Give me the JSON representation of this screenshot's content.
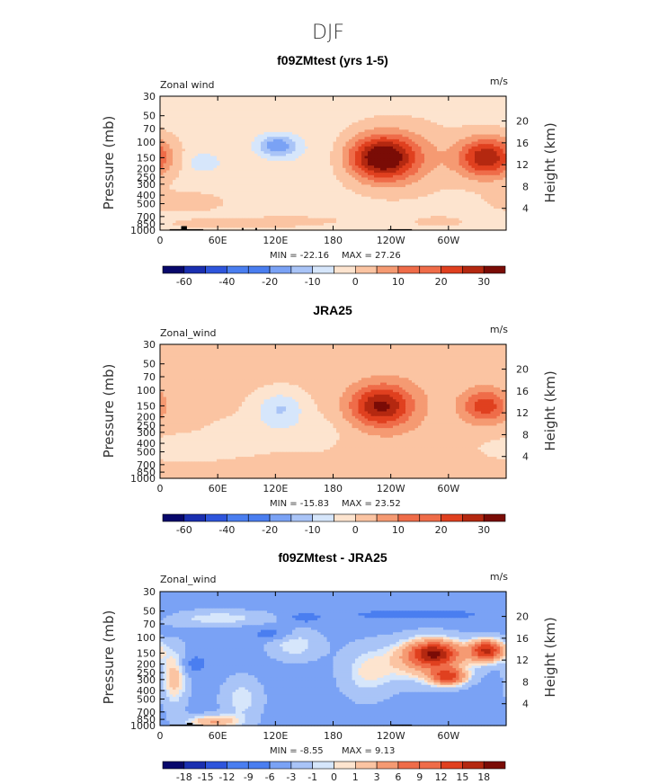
{
  "figure": {
    "suptitle": "DJF"
  },
  "colors": {
    "levels_full": [
      "#08086b",
      "#1a2fb0",
      "#2e55dc",
      "#4a7ef0",
      "#7aa2f5",
      "#a9c4f7",
      "#d6e6fb",
      "#fde4cf",
      "#fbc4a2",
      "#f59a72",
      "#ef6c49",
      "#e0401f",
      "#b42810",
      "#7a0c06"
    ],
    "levels_diff": [
      "#08086b",
      "#1a2fb0",
      "#2e55dc",
      "#4a7ef0",
      "#7aa2f5",
      "#a9c4f7",
      "#d6e6fb",
      "#fde4cf",
      "#fbc4a2",
      "#f59a72",
      "#ef6c49",
      "#e0401f",
      "#b42810",
      "#7a0c06"
    ],
    "topography": "#000000"
  },
  "chart_data": [
    {
      "type": "heatmap",
      "title": "f09ZMtest (yrs 1-5)",
      "left_label": "Zonal wind",
      "right_label": "m/s",
      "ylabel": "Pressure (mb)",
      "y2label": "Height (km)",
      "x_ticks": [
        "0",
        "60E",
        "120E",
        "180",
        "120W",
        "60W"
      ],
      "x_tick_values": [
        0,
        60,
        120,
        180,
        240,
        300
      ],
      "xlim": [
        0,
        360
      ],
      "y_ticks": [
        "30",
        "50",
        "70",
        "100",
        "150",
        "200",
        "250",
        "300",
        "400",
        "500",
        "700",
        "850",
        "1000"
      ],
      "y_tick_values": [
        30,
        50,
        70,
        100,
        150,
        200,
        250,
        300,
        400,
        500,
        700,
        850,
        1000
      ],
      "ylim": [
        1000,
        30
      ],
      "y_scale": "log",
      "y2_ticks": [
        "4",
        "8",
        "12",
        "16",
        "20"
      ],
      "y2_tick_values": [
        4,
        8,
        12,
        16,
        20
      ],
      "min_label": "MIN = -22.16",
      "max_label": "MAX = 27.26",
      "min": -22.16,
      "max": 27.26,
      "colorbar_labels": [
        "-60",
        "-40",
        "-20",
        "-10",
        "0",
        "10",
        "20",
        "30"
      ],
      "colorbar_label_pos": [
        1,
        3,
        5,
        7,
        9,
        11,
        13,
        15
      ],
      "colorbar_boxes": 16,
      "background_level": 6,
      "features": [
        {
          "lon": 25,
          "p": 480,
          "w": 70,
          "h": 0.22,
          "v": 2
        },
        {
          "lon": 75,
          "p": 850,
          "w": 95,
          "h": 0.1,
          "v": 2.5
        },
        {
          "lon": 140,
          "p": 780,
          "w": 70,
          "h": 0.08,
          "v": 2
        },
        {
          "lon": 160,
          "p": 150,
          "w": 60,
          "h": 0.55,
          "v": -4
        },
        {
          "lon": 45,
          "p": 170,
          "w": 25,
          "h": 0.18,
          "v": -9
        },
        {
          "lon": 122,
          "p": 110,
          "w": 28,
          "h": 0.2,
          "v": -19
        },
        {
          "lon": 252,
          "p": 150,
          "w": 75,
          "h": 0.62,
          "v": 6
        },
        {
          "lon": 230,
          "p": 150,
          "w": 48,
          "h": 0.4,
          "v": 26
        },
        {
          "lon": 340,
          "p": 150,
          "w": 42,
          "h": 0.38,
          "v": 24
        },
        {
          "lon": 290,
          "p": 800,
          "w": 40,
          "h": 0.1,
          "v": 2
        }
      ],
      "topography": [
        {
          "lon_start": 10,
          "lon_end": 45,
          "p_top": 975
        },
        {
          "lon_start": 22,
          "lon_end": 28,
          "p_top": 900
        },
        {
          "lon_start": 85,
          "lon_end": 87,
          "p_top": 945
        },
        {
          "lon_start": 99,
          "lon_end": 101,
          "p_top": 945
        },
        {
          "lon_start": 237,
          "lon_end": 262,
          "p_top": 975
        }
      ]
    },
    {
      "type": "heatmap",
      "title": "JRA25",
      "left_label": "Zonal_wind",
      "right_label": "m/s",
      "ylabel": "Pressure (mb)",
      "y2label": "Height (km)",
      "x_ticks": [
        "0",
        "60E",
        "120E",
        "180",
        "120W",
        "60W"
      ],
      "x_tick_values": [
        0,
        60,
        120,
        180,
        240,
        300
      ],
      "xlim": [
        0,
        360
      ],
      "y_ticks": [
        "30",
        "50",
        "70",
        "100",
        "150",
        "200",
        "250",
        "300",
        "400",
        "500",
        "700",
        "850",
        "1000"
      ],
      "y_tick_values": [
        30,
        50,
        70,
        100,
        150,
        200,
        250,
        300,
        400,
        500,
        700,
        850,
        1000
      ],
      "ylim": [
        1000,
        30
      ],
      "y_scale": "log",
      "y2_ticks": [
        "4",
        "8",
        "12",
        "16",
        "20"
      ],
      "y2_tick_values": [
        4,
        8,
        12,
        16,
        20
      ],
      "min_label": "MIN = -15.83",
      "max_label": "MAX = 23.52",
      "min": -15.83,
      "max": 23.52,
      "colorbar_labels": [
        "-60",
        "-40",
        "-20",
        "-10",
        "0",
        "10",
        "20",
        "30"
      ],
      "colorbar_label_pos": [
        1,
        3,
        5,
        7,
        9,
        11,
        13,
        15
      ],
      "colorbar_boxes": 16,
      "background_level": 7,
      "features": [
        {
          "lon": 30,
          "p": 450,
          "w": 80,
          "h": 0.25,
          "v": -2
        },
        {
          "lon": 125,
          "p": 160,
          "w": 35,
          "h": 0.3,
          "v": -10
        },
        {
          "lon": 100,
          "p": 300,
          "w": 60,
          "h": 0.3,
          "v": -3
        },
        {
          "lon": 160,
          "p": 300,
          "w": 40,
          "h": 0.3,
          "v": -3
        },
        {
          "lon": 240,
          "p": 150,
          "w": 60,
          "h": 0.6,
          "v": 8
        },
        {
          "lon": 228,
          "p": 150,
          "w": 42,
          "h": 0.35,
          "v": 20
        },
        {
          "lon": 338,
          "p": 150,
          "w": 35,
          "h": 0.32,
          "v": 18
        },
        {
          "lon": 90,
          "p": 750,
          "w": 40,
          "h": 0.1,
          "v": 2
        }
      ],
      "topography": []
    },
    {
      "type": "heatmap",
      "title": "f09ZMtest - JRA25",
      "left_label": "Zonal_wind",
      "right_label": "m/s",
      "ylabel": "Pressure (mb)",
      "y2label": "Height (km)",
      "x_ticks": [
        "0",
        "60E",
        "120E",
        "180",
        "120W",
        "60W"
      ],
      "x_tick_values": [
        0,
        60,
        120,
        180,
        240,
        300
      ],
      "xlim": [
        0,
        360
      ],
      "y_ticks": [
        "30",
        "50",
        "70",
        "100",
        "150",
        "200",
        "250",
        "300",
        "400",
        "500",
        "700",
        "850",
        "1000"
      ],
      "y_tick_values": [
        30,
        50,
        70,
        100,
        150,
        200,
        250,
        300,
        400,
        500,
        700,
        850,
        1000
      ],
      "ylim": [
        1000,
        30
      ],
      "y_scale": "log",
      "y2_ticks": [
        "4",
        "8",
        "12",
        "16",
        "20"
      ],
      "y2_tick_values": [
        4,
        8,
        12,
        16,
        20
      ],
      "min_label": "MIN = -8.55",
      "max_label": "MAX = 9.13",
      "min": -8.55,
      "max": 9.13,
      "colorbar_labels": [
        "-18",
        "-15",
        "-12",
        "-9",
        "-6",
        "-3",
        "-1",
        "0",
        "1",
        "3",
        "6",
        "9",
        "12",
        "15",
        "18"
      ],
      "colorbar_label_pos": [
        1,
        2,
        3,
        4,
        5,
        6,
        7,
        8,
        9,
        10,
        11,
        12,
        13,
        14,
        15
      ],
      "colorbar_boxes": 16,
      "background_level": 4,
      "features": [
        {
          "lon": 60,
          "p": 60,
          "w": 80,
          "h": 0.15,
          "v": 0
        },
        {
          "lon": 280,
          "p": 180,
          "w": 60,
          "h": 0.4,
          "v": 4
        },
        {
          "lon": 285,
          "p": 150,
          "w": 35,
          "h": 0.22,
          "v": 9
        },
        {
          "lon": 300,
          "p": 280,
          "w": 25,
          "h": 0.15,
          "v": 8
        },
        {
          "lon": 340,
          "p": 140,
          "w": 25,
          "h": 0.2,
          "v": 12
        },
        {
          "lon": 215,
          "p": 250,
          "w": 40,
          "h": 0.5,
          "v": 0
        },
        {
          "lon": 15,
          "p": 280,
          "w": 20,
          "h": 0.55,
          "v": 2
        },
        {
          "lon": 85,
          "p": 500,
          "w": 30,
          "h": 0.4,
          "v": 0
        },
        {
          "lon": 55,
          "p": 900,
          "w": 40,
          "h": 0.12,
          "v": 3
        },
        {
          "lon": 140,
          "p": 120,
          "w": 40,
          "h": 0.3,
          "v": 0
        },
        {
          "lon": 115,
          "p": 90,
          "w": 30,
          "h": 0.12,
          "v": -8
        },
        {
          "lon": 35,
          "p": 200,
          "w": 20,
          "h": 0.18,
          "v": -8
        },
        {
          "lon": 270,
          "p": 55,
          "w": 110,
          "h": 0.1,
          "v": -8
        },
        {
          "lon": 150,
          "p": 60,
          "w": 25,
          "h": 0.1,
          "v": -8
        },
        {
          "lon": 290,
          "p": 900,
          "w": 60,
          "h": 0.12,
          "v": -3
        }
      ],
      "topography": [
        {
          "lon_start": 10,
          "lon_end": 45,
          "p_top": 975
        },
        {
          "lon_start": 28,
          "lon_end": 34,
          "p_top": 930
        },
        {
          "lon_start": 240,
          "lon_end": 262,
          "p_top": 975
        }
      ]
    }
  ]
}
